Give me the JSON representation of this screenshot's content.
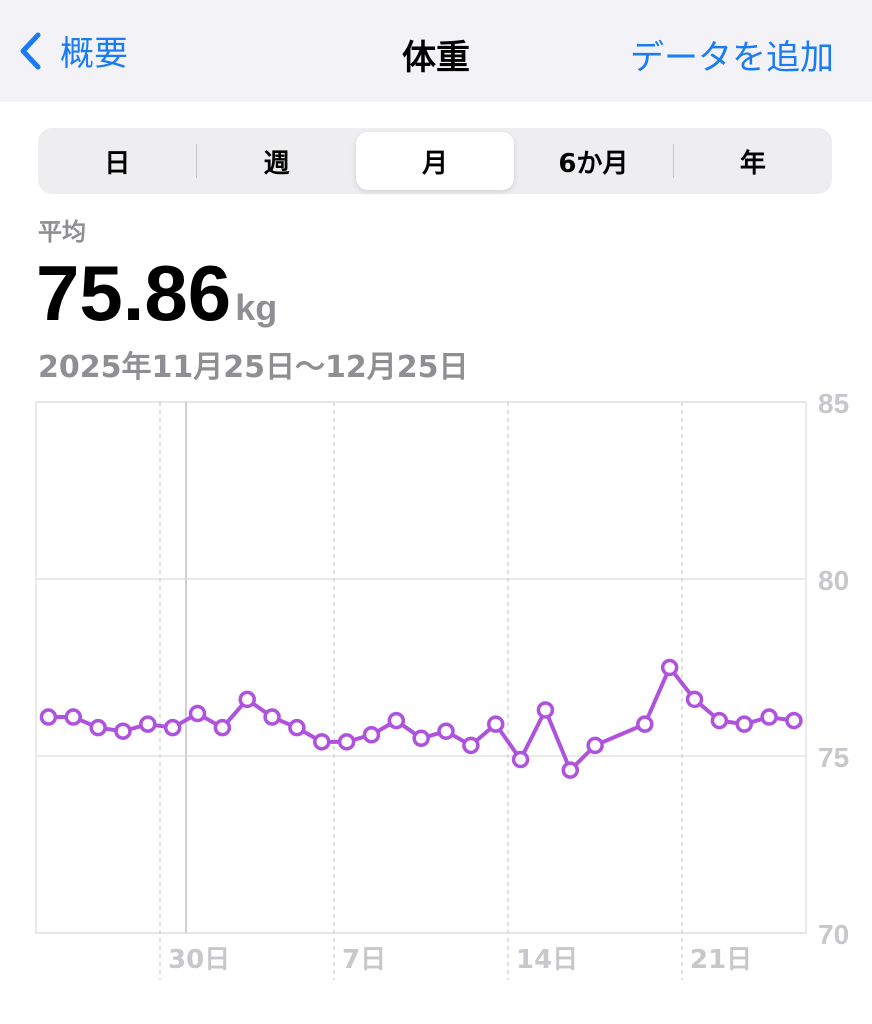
{
  "nav": {
    "back_label": "概要",
    "title": "体重",
    "add_label": "データを追加"
  },
  "tabs": [
    {
      "label": "日"
    },
    {
      "label": "週"
    },
    {
      "label": "月",
      "selected": true
    },
    {
      "label": "6か月"
    },
    {
      "label": "年"
    }
  ],
  "summary": {
    "label": "平均",
    "value": "75.86",
    "unit": "kg",
    "range": "2025年11月25日〜12月25日"
  },
  "colors": {
    "accent": "#1a7cf5",
    "series": "#af52de"
  },
  "chart_data": {
    "type": "line",
    "ylim": [
      70,
      85
    ],
    "yticks": [
      "70",
      "75",
      "80",
      "85"
    ],
    "xticks": [
      "30日",
      "7日",
      "14日",
      "21日"
    ],
    "x": [
      "11/25",
      "11/26",
      "11/27",
      "11/28",
      "11/29",
      "11/30",
      "12/1",
      "12/2",
      "12/3",
      "12/4",
      "12/5",
      "12/6",
      "12/7",
      "12/8",
      "12/9",
      "12/10",
      "12/11",
      "12/12",
      "12/13",
      "12/14",
      "12/15",
      "12/16",
      "12/17",
      "12/19",
      "12/20",
      "12/21",
      "12/22",
      "12/23",
      "12/24",
      "12/25"
    ],
    "values": [
      76.1,
      76.1,
      75.8,
      75.7,
      75.9,
      75.8,
      76.2,
      75.8,
      76.6,
      76.1,
      75.8,
      75.4,
      75.4,
      75.6,
      76.0,
      75.5,
      75.7,
      75.3,
      75.9,
      74.9,
      76.3,
      74.6,
      75.3,
      75.9,
      77.5,
      76.6,
      76.0,
      75.9,
      76.1,
      76.0
    ],
    "grid": true
  }
}
